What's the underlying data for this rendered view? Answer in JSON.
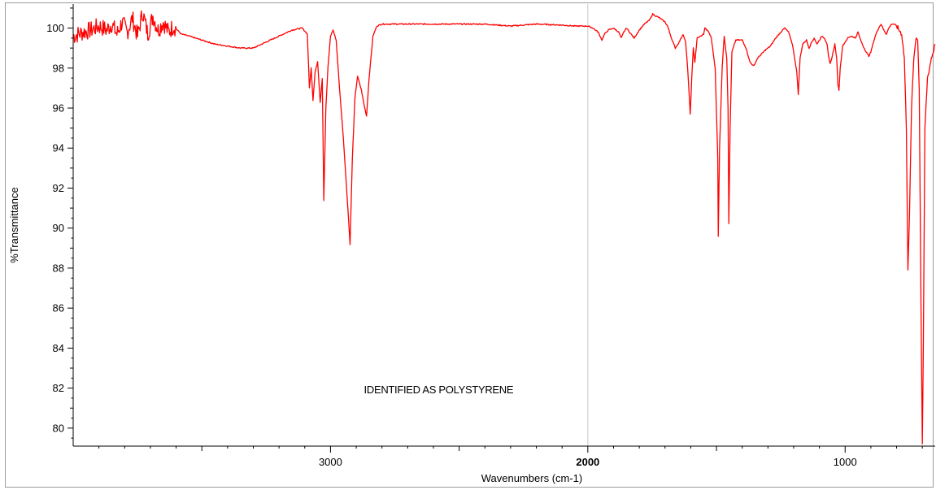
{
  "chart_data": {
    "type": "line",
    "title": "",
    "xlabel": "Wavenumbers (cm-1)",
    "ylabel": "%Transmittance",
    "xlim": [
      4000,
      650
    ],
    "ylim": [
      79.1,
      101.2
    ],
    "x_reversed": true,
    "grid": false,
    "reference_line_x": 2000,
    "x_ticks": [
      {
        "value": 3000,
        "label": "3000",
        "bold": false
      },
      {
        "value": 2000,
        "label": "2000",
        "bold": true
      },
      {
        "value": 1000,
        "label": "1000",
        "bold": false
      }
    ],
    "y_ticks": [
      {
        "value": 100,
        "label": "100"
      },
      {
        "value": 98,
        "label": "98"
      },
      {
        "value": 96,
        "label": "96"
      },
      {
        "value": 94,
        "label": "94"
      },
      {
        "value": 92,
        "label": "92"
      },
      {
        "value": 90,
        "label": "90"
      },
      {
        "value": 88,
        "label": "88"
      },
      {
        "value": 86,
        "label": "86"
      },
      {
        "value": 84,
        "label": "84"
      },
      {
        "value": 82,
        "label": "82"
      },
      {
        "value": 80,
        "label": "80"
      }
    ],
    "annotations": [
      {
        "text": "IDENTIFIED AS POLYSTYRENE",
        "x": 2870,
        "y": 81.9
      }
    ],
    "series": [
      {
        "color": "#ff0000",
        "points": [
          [
            4000,
            99.6
          ],
          [
            3960,
            99.8
          ],
          [
            3930,
            99.9
          ],
          [
            3900,
            100.1
          ],
          [
            3870,
            99.9
          ],
          [
            3850,
            100.2
          ],
          [
            3830,
            99.7
          ],
          [
            3810,
            100.3
          ],
          [
            3790,
            99.8
          ],
          [
            3770,
            100.5
          ],
          [
            3750,
            99.6
          ],
          [
            3730,
            100.8
          ],
          [
            3710,
            99.7
          ],
          [
            3690,
            100.6
          ],
          [
            3670,
            99.9
          ],
          [
            3650,
            100.3
          ],
          [
            3630,
            99.8
          ],
          [
            3610,
            100.1
          ],
          [
            3580,
            99.7
          ],
          [
            3550,
            99.6
          ],
          [
            3500,
            99.4
          ],
          [
            3450,
            99.2
          ],
          [
            3400,
            99.1
          ],
          [
            3350,
            99.0
          ],
          [
            3300,
            99.0
          ],
          [
            3250,
            99.3
          ],
          [
            3200,
            99.6
          ],
          [
            3150,
            99.9
          ],
          [
            3110,
            100.0
          ],
          [
            3090,
            99.7
          ],
          [
            3082,
            97.0
          ],
          [
            3075,
            98.0
          ],
          [
            3068,
            96.4
          ],
          [
            3060,
            97.8
          ],
          [
            3050,
            98.3
          ],
          [
            3040,
            96.3
          ],
          [
            3032,
            97.5
          ],
          [
            3026,
            91.4
          ],
          [
            3018,
            96.0
          ],
          [
            3010,
            98.0
          ],
          [
            3000,
            99.6
          ],
          [
            2990,
            99.9
          ],
          [
            2978,
            99.4
          ],
          [
            2965,
            97.0
          ],
          [
            2950,
            94.5
          ],
          [
            2935,
            91.5
          ],
          [
            2924,
            89.2
          ],
          [
            2915,
            93.5
          ],
          [
            2905,
            96.5
          ],
          [
            2895,
            97.6
          ],
          [
            2880,
            96.9
          ],
          [
            2870,
            96.2
          ],
          [
            2860,
            95.6
          ],
          [
            2850,
            97.5
          ],
          [
            2835,
            99.6
          ],
          [
            2820,
            100.1
          ],
          [
            2800,
            100.2
          ],
          [
            2700,
            100.2
          ],
          [
            2600,
            100.2
          ],
          [
            2500,
            100.2
          ],
          [
            2400,
            100.2
          ],
          [
            2300,
            100.1
          ],
          [
            2200,
            100.2
          ],
          [
            2100,
            100.15
          ],
          [
            2050,
            100.1
          ],
          [
            2000,
            100.1
          ],
          [
            1980,
            100.0
          ],
          [
            1960,
            99.8
          ],
          [
            1945,
            99.4
          ],
          [
            1935,
            99.7
          ],
          [
            1920,
            99.9
          ],
          [
            1900,
            100.0
          ],
          [
            1880,
            99.8
          ],
          [
            1870,
            99.5
          ],
          [
            1860,
            99.8
          ],
          [
            1850,
            100.0
          ],
          [
            1820,
            99.5
          ],
          [
            1800,
            99.9
          ],
          [
            1780,
            100.2
          ],
          [
            1760,
            100.4
          ],
          [
            1748,
            100.7
          ],
          [
            1735,
            100.6
          ],
          [
            1720,
            100.5
          ],
          [
            1700,
            100.3
          ],
          [
            1690,
            100.1
          ],
          [
            1675,
            99.5
          ],
          [
            1660,
            99.0
          ],
          [
            1645,
            99.3
          ],
          [
            1630,
            99.7
          ],
          [
            1620,
            99.3
          ],
          [
            1612,
            98.0
          ],
          [
            1602,
            95.7
          ],
          [
            1596,
            97.5
          ],
          [
            1590,
            99.0
          ],
          [
            1584,
            98.3
          ],
          [
            1575,
            99.5
          ],
          [
            1560,
            99.6
          ],
          [
            1550,
            99.7
          ],
          [
            1545,
            100.0
          ],
          [
            1530,
            99.8
          ],
          [
            1520,
            99.5
          ],
          [
            1505,
            98.0
          ],
          [
            1495,
            93.5
          ],
          [
            1493,
            89.6
          ],
          [
            1488,
            94.0
          ],
          [
            1478,
            98.0
          ],
          [
            1470,
            99.6
          ],
          [
            1460,
            98.5
          ],
          [
            1455,
            96.0
          ],
          [
            1452,
            90.2
          ],
          [
            1447,
            95.0
          ],
          [
            1440,
            98.8
          ],
          [
            1425,
            99.4
          ],
          [
            1400,
            99.4
          ],
          [
            1385,
            99.0
          ],
          [
            1370,
            98.3
          ],
          [
            1355,
            98.1
          ],
          [
            1340,
            98.5
          ],
          [
            1325,
            98.7
          ],
          [
            1310,
            98.9
          ],
          [
            1290,
            99.1
          ],
          [
            1270,
            99.5
          ],
          [
            1250,
            99.8
          ],
          [
            1235,
            100.0
          ],
          [
            1220,
            99.8
          ],
          [
            1205,
            99.2
          ],
          [
            1195,
            98.4
          ],
          [
            1188,
            97.8
          ],
          [
            1182,
            96.7
          ],
          [
            1175,
            98.5
          ],
          [
            1165,
            99.2
          ],
          [
            1150,
            99.4
          ],
          [
            1140,
            99.0
          ],
          [
            1130,
            99.3
          ],
          [
            1120,
            99.5
          ],
          [
            1110,
            99.2
          ],
          [
            1100,
            99.4
          ],
          [
            1090,
            99.6
          ],
          [
            1080,
            99.5
          ],
          [
            1070,
            99.2
          ],
          [
            1065,
            98.6
          ],
          [
            1058,
            98.2
          ],
          [
            1050,
            98.6
          ],
          [
            1040,
            99.2
          ],
          [
            1033,
            98.5
          ],
          [
            1028,
            97.2
          ],
          [
            1024,
            96.9
          ],
          [
            1019,
            98.0
          ],
          [
            1010,
            99.1
          ],
          [
            1000,
            99.3
          ],
          [
            990,
            99.5
          ],
          [
            975,
            99.6
          ],
          [
            960,
            99.5
          ],
          [
            950,
            99.8
          ],
          [
            940,
            99.4
          ],
          [
            930,
            99.1
          ],
          [
            918,
            98.8
          ],
          [
            908,
            98.6
          ],
          [
            900,
            98.8
          ],
          [
            890,
            99.3
          ],
          [
            880,
            99.7
          ],
          [
            870,
            100.0
          ],
          [
            860,
            100.2
          ],
          [
            850,
            99.9
          ],
          [
            840,
            99.7
          ],
          [
            830,
            100.0
          ],
          [
            820,
            100.2
          ],
          [
            810,
            100.2
          ],
          [
            800,
            100.1
          ],
          [
            790,
            99.9
          ],
          [
            780,
            99.7
          ],
          [
            770,
            98.5
          ],
          [
            762,
            95.0
          ],
          [
            756,
            88.0
          ],
          [
            750,
            90.5
          ],
          [
            742,
            96.0
          ],
          [
            733,
            98.5
          ],
          [
            724,
            99.6
          ],
          [
            718,
            99.4
          ],
          [
            712,
            97.0
          ],
          [
            705,
            86.0
          ],
          [
            700,
            79.2
          ],
          [
            696,
            84.0
          ],
          [
            690,
            95.0
          ],
          [
            680,
            97.5
          ],
          [
            672,
            98.0
          ],
          [
            665,
            98.5
          ],
          [
            658,
            98.8
          ],
          [
            650,
            99.2
          ]
        ]
      }
    ]
  }
}
